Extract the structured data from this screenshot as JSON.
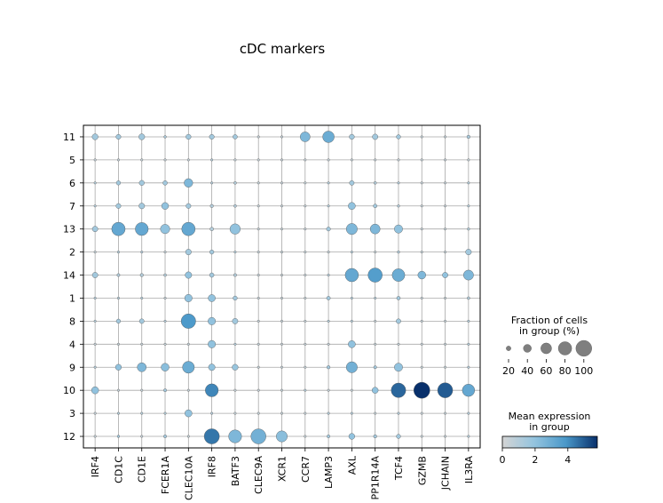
{
  "chart_data": {
    "type": "dotplot",
    "title": "cDC markers",
    "genes": [
      "IRF4",
      "CD1C",
      "CD1E",
      "FCER1A",
      "CLEC10A",
      "IRF8",
      "BATF3",
      "CLEC9A",
      "XCR1",
      "CCR7",
      "LAMP3",
      "AXL",
      "PP1R14A",
      "TCF4",
      "GZMB",
      "JCHAIN",
      "IL3RA"
    ],
    "groups": [
      "11",
      "5",
      "6",
      "7",
      "13",
      "2",
      "14",
      "1",
      "8",
      "4",
      "9",
      "10",
      "3",
      "12"
    ],
    "fraction_pct": [
      [
        22,
        17,
        22,
        7,
        18,
        17,
        15,
        2,
        2,
        43,
        53,
        18,
        20,
        14,
        1,
        1,
        10
      ],
      [
        1,
        1,
        1,
        1,
        1,
        3,
        2,
        1,
        1,
        1,
        1,
        3,
        1,
        2,
        1,
        1,
        1
      ],
      [
        3,
        14,
        18,
        15,
        36,
        6,
        8,
        1,
        1,
        1,
        3,
        16,
        8,
        3,
        1,
        1,
        2
      ],
      [
        6,
        17,
        21,
        27,
        17,
        10,
        8,
        2,
        1,
        1,
        4,
        28,
        12,
        7,
        1,
        2,
        3
      ],
      [
        20,
        65,
        62,
        40,
        65,
        11,
        46,
        1,
        1,
        1,
        13,
        50,
        43,
        34,
        1,
        1,
        7
      ],
      [
        1,
        3,
        3,
        2,
        21,
        14,
        6,
        1,
        1,
        1,
        1,
        3,
        1,
        7,
        1,
        1,
        21
      ],
      [
        20,
        9,
        10,
        8,
        25,
        15,
        9,
        1,
        1,
        1,
        4,
        64,
        70,
        60,
        32,
        20,
        44
      ],
      [
        4,
        4,
        4,
        3,
        30,
        28,
        14,
        1,
        1,
        1,
        12,
        4,
        4,
        11,
        1,
        1,
        8
      ],
      [
        5,
        14,
        16,
        4,
        72,
        30,
        20,
        1,
        1,
        1,
        6,
        4,
        1,
        16,
        1,
        1,
        3
      ],
      [
        1,
        1,
        1,
        1,
        1,
        30,
        4,
        1,
        1,
        1,
        1,
        28,
        1,
        1,
        1,
        1,
        3
      ],
      [
        4,
        22,
        38,
        32,
        55,
        25,
        22,
        2,
        1,
        1,
        10,
        50,
        9,
        34,
        1,
        1,
        6
      ],
      [
        28,
        1,
        1,
        9,
        1,
        62,
        1,
        1,
        1,
        6,
        1,
        1,
        23,
        72,
        82,
        75,
        58
      ],
      [
        3,
        4,
        4,
        4,
        28,
        6,
        2,
        1,
        1,
        1,
        4,
        4,
        3,
        6,
        1,
        1,
        5
      ],
      [
        1,
        7,
        1,
        9,
        1,
        76,
        62,
        75,
        50,
        1,
        9,
        22,
        10,
        14,
        1,
        1,
        5
      ]
    ],
    "mean_expr": [
      [
        1.5,
        1.5,
        1.5,
        1.3,
        1.5,
        1.5,
        1.5,
        0.5,
        0.5,
        2.5,
        3.0,
        1.5,
        1.5,
        1.5,
        0.5,
        0.5,
        1.3
      ],
      [
        0.5,
        0.5,
        0.5,
        0.5,
        0.5,
        1.0,
        0.5,
        0.5,
        0.5,
        0.5,
        0.5,
        0.5,
        0.5,
        0.5,
        0.5,
        0.5,
        0.5
      ],
      [
        1.0,
        1.5,
        1.5,
        1.5,
        2.5,
        1.0,
        1.0,
        0.5,
        0.5,
        0.5,
        1.0,
        1.5,
        1.0,
        1.0,
        0.5,
        0.5,
        1.0
      ],
      [
        1.0,
        1.5,
        1.5,
        2.0,
        1.5,
        1.0,
        1.0,
        0.5,
        0.5,
        0.5,
        1.0,
        2.0,
        1.5,
        1.0,
        0.5,
        0.5,
        1.0
      ],
      [
        1.5,
        3.2,
        3.2,
        2.0,
        3.2,
        1.0,
        2.0,
        0.5,
        0.5,
        0.5,
        1.5,
        2.5,
        2.5,
        2.0,
        0.5,
        0.5,
        1.0
      ],
      [
        0.5,
        1.0,
        1.0,
        0.5,
        1.5,
        1.5,
        1.0,
        0.5,
        0.5,
        0.5,
        0.5,
        1.0,
        0.5,
        1.0,
        0.5,
        0.5,
        1.5
      ],
      [
        1.5,
        1.0,
        1.0,
        1.0,
        2.0,
        1.5,
        1.0,
        0.5,
        0.5,
        0.5,
        1.0,
        3.2,
        3.6,
        3.0,
        2.5,
        2.0,
        2.5
      ],
      [
        1.0,
        1.0,
        1.0,
        0.5,
        2.0,
        2.0,
        1.5,
        0.5,
        0.5,
        0.5,
        1.5,
        1.0,
        1.0,
        1.5,
        0.5,
        0.5,
        1.0
      ],
      [
        1.0,
        1.5,
        1.5,
        1.0,
        3.8,
        2.0,
        1.5,
        0.5,
        0.5,
        0.5,
        1.0,
        1.0,
        0.5,
        1.5,
        0.5,
        0.5,
        1.0
      ],
      [
        0.5,
        0.5,
        0.5,
        0.5,
        0.5,
        2.0,
        1.0,
        0.5,
        0.5,
        0.5,
        0.5,
        2.0,
        0.5,
        0.5,
        0.5,
        0.5,
        1.0
      ],
      [
        1.0,
        2.0,
        2.5,
        2.2,
        3.0,
        2.0,
        1.8,
        0.5,
        0.5,
        0.5,
        1.5,
        2.8,
        1.5,
        2.0,
        0.5,
        0.5,
        1.0
      ],
      [
        2.0,
        0.5,
        0.5,
        1.5,
        0.5,
        4.2,
        0.5,
        0.5,
        0.5,
        1.0,
        0.5,
        0.5,
        2.0,
        4.8,
        5.8,
        5.0,
        3.2
      ],
      [
        0.5,
        1.0,
        1.0,
        1.0,
        2.0,
        1.0,
        0.5,
        0.5,
        0.5,
        0.5,
        1.0,
        1.0,
        0.5,
        1.0,
        0.5,
        0.5,
        1.0
      ],
      [
        0.5,
        1.5,
        0.5,
        1.5,
        0.5,
        4.5,
        2.5,
        2.8,
        2.2,
        0.5,
        1.5,
        2.0,
        1.5,
        1.5,
        0.5,
        0.5,
        1.0
      ]
    ],
    "size_legend": {
      "title": "Fraction of cells\nin group (%)",
      "values": [
        20,
        40,
        60,
        80,
        100
      ],
      "labels": [
        "20",
        "40",
        "60",
        "80",
        "100"
      ]
    },
    "color_legend": {
      "title": "Mean expression\nin group",
      "vmin": 0,
      "vmax": 5.8,
      "ticks": [
        "0",
        "2",
        "4"
      ],
      "tick_values": [
        0,
        2,
        4
      ],
      "colormap": [
        "#d4d4d4",
        "#94c4df",
        "#4a98c9",
        "#08306b"
      ]
    },
    "grid": true
  }
}
